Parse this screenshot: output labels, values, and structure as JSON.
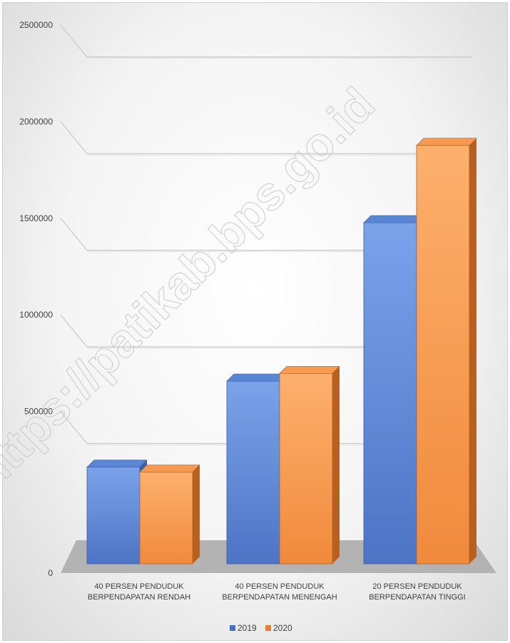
{
  "chart_data": {
    "type": "bar",
    "title": "",
    "categories": [
      [
        "40 PERSEN PENDUDUK",
        "BERPENDAPATAN RENDAH"
      ],
      [
        "40 PERSEN PENDUDUK",
        "BERPENDAPATAN MENENGAH"
      ],
      [
        "20 PERSEN PENDUDUK",
        "BERPENDAPATAN TINGGI"
      ]
    ],
    "series": [
      {
        "name": "2019",
        "values": [
          500000,
          945000,
          1765000
        ],
        "color": "#4472C4"
      },
      {
        "name": "2020",
        "values": [
          475000,
          985000,
          2165000
        ],
        "color": "#ED7D31"
      }
    ],
    "ylim": [
      0,
      2500000
    ],
    "yticks": [
      "0",
      "500000",
      "1000000",
      "1500000",
      "2000000",
      "2500000"
    ],
    "grid": true,
    "style": "3d-clustered-column",
    "legend": "bottom"
  },
  "watermark": "https://patikab.bps.go.id"
}
